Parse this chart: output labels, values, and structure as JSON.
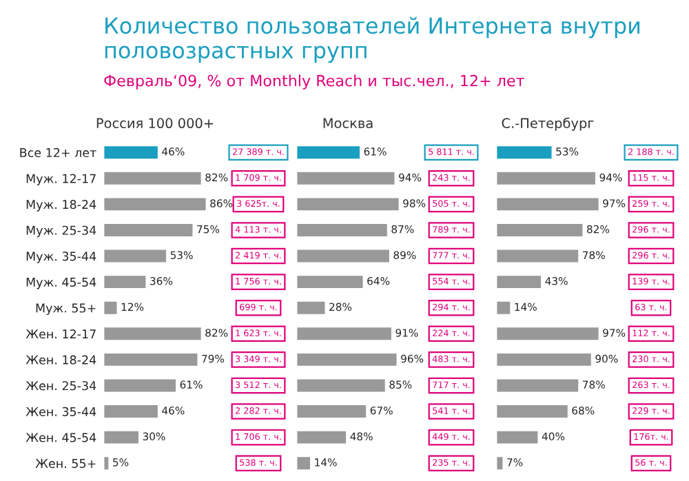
{
  "chart_data": [
    {
      "type": "bar",
      "orientation": "horizontal",
      "title": "Количество пользователей Интернета внутри половозрастных групп",
      "subtitle": "Февраль‘09, % от Monthly Reach и тыс.чел., 12+ лет",
      "xlabel": "Россия 100 000+",
      "tick_labels": "y",
      "categories": [
        "Все 12+ лет",
        "Муж. 12-17",
        "Муж. 18-24",
        "Муж. 25-34",
        "Муж. 35-44",
        "Муж. 45-54",
        "Муж. 55+",
        "Жен. 12-17",
        "Жен. 18-24",
        "Жен. 25-34",
        "Жен. 35-44",
        "Жен. 45-54",
        "Жен. 55+"
      ],
      "values": [
        46,
        82,
        86,
        75,
        53,
        36,
        12,
        82,
        79,
        61,
        46,
        30,
        5
      ],
      "value_labels": [
        "46%",
        "82%",
        "86%",
        "75%",
        "53%",
        "36%",
        "12%",
        "82%",
        "79%",
        "61%",
        "46%",
        "30%",
        "5%"
      ],
      "colors": [
        "#1a9fc0",
        "#999999",
        "#999999",
        "#999999",
        "#999999",
        "#999999",
        "#999999",
        "#999999",
        "#999999",
        "#999999",
        "#999999",
        "#999999",
        "#999999"
      ],
      "annotations": [
        "27 389 т. ч.",
        "1 709 т. ч.",
        "3 625т. ч.",
        "4 113 т. ч.",
        "2 419 т. ч.",
        "1 756 т. ч.",
        "699 т. ч.",
        "1 623 т. ч.",
        "3 349 т. ч.",
        "3 512 т. ч.",
        "2 282 т. ч.",
        "1 706 т. ч.",
        "538 т. ч."
      ]
    },
    {
      "type": "bar",
      "orientation": "horizontal",
      "xlabel": "Москва",
      "tick_labels": false,
      "values": [
        61,
        94,
        98,
        87,
        89,
        64,
        28,
        91,
        96,
        85,
        67,
        48,
        14
      ],
      "value_labels": [
        "61%",
        "94%",
        "98%",
        "87%",
        "89%",
        "64%",
        "28%",
        "91%",
        "96%",
        "85%",
        "67%",
        "48%",
        "14%"
      ],
      "colors": [
        "#1a9fc0",
        "#999999",
        "#999999",
        "#999999",
        "#999999",
        "#999999",
        "#999999",
        "#999999",
        "#999999",
        "#999999",
        "#999999",
        "#999999",
        "#999999"
      ],
      "annotations": [
        "5 811 т. ч.",
        "243 т. ч.",
        "505 т. ч.",
        "789 т. ч.",
        "777 т. ч.",
        "554 т. ч.",
        "294 т. ч.",
        "224 т. ч.",
        "483 т. ч.",
        "717 т. ч.",
        "541 т. ч.",
        "449 т. ч.",
        "235 т. ч."
      ]
    },
    {
      "type": "bar",
      "orientation": "horizontal",
      "xlabel": "С.-Петербург",
      "tick_labels": false,
      "values": [
        53,
        94,
        97,
        82,
        78,
        43,
        14,
        97,
        90,
        78,
        68,
        40,
        7
      ],
      "value_labels": [
        "53%",
        "94%",
        "97%",
        "82%",
        "78%",
        "43%",
        "14%",
        "97%",
        "90%",
        "78%",
        "68%",
        "40%",
        "7%"
      ],
      "colors": [
        "#1a9fc0",
        "#999999",
        "#999999",
        "#999999",
        "#999999",
        "#999999",
        "#999999",
        "#999999",
        "#999999",
        "#999999",
        "#999999",
        "#999999",
        "#999999"
      ],
      "annotations": [
        "2 188 т. ч.",
        "115 т. ч.",
        "259 т. ч.",
        "296 т. ч.",
        "296 т. ч.",
        "139 т. ч.",
        "63 т. ч.",
        "112 т. ч.",
        "230 т. ч.",
        "263 т. ч.",
        "229 т. ч.",
        "176т. ч.",
        "56 т. ч."
      ]
    }
  ]
}
